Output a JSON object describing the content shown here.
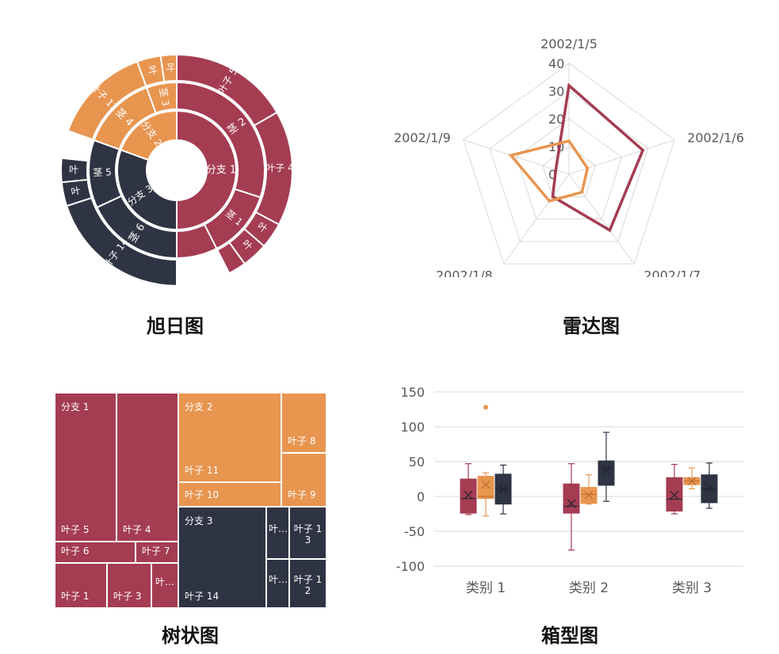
{
  "colors": {
    "red": "#A43C52",
    "orange": "#E89550",
    "navy": "#2F3444",
    "grid": "#D9D9D9",
    "axis_text": "#595959"
  },
  "captions": {
    "sunburst": "旭日图",
    "radar": "雷达图",
    "treemap": "树状图",
    "boxplot": "箱型图"
  },
  "chart_data": [
    {
      "type": "sunburst",
      "nodes": [
        {
          "name": "分支",
          "value": 1,
          "color": "red",
          "children": [
            {
              "name": "茎",
              "value": 2,
              "children": [
                {
                  "name": "叶子",
                  "value": 5
                },
                {
                  "name": "叶子",
                  "value": 4
                }
              ]
            },
            {
              "name": "茎",
              "value": 1,
              "children": [
                {
                  "name": "叶",
                  "value": 1
                },
                {
                  "name": "叶",
                  "value": 1
                }
              ]
            }
          ]
        },
        {
          "name": "分支",
          "value": 2,
          "color": "orange",
          "children": [
            {
              "name": "茎",
              "value": 4,
              "children": [
                {
                  "name": "叶子",
                  "value": 11
                }
              ]
            },
            {
              "name": "茎",
              "value": 3,
              "children": [
                {
                  "name": "叶",
                  "value": 1
                },
                {
                  "name": "叶",
                  "value": 1
                }
              ]
            }
          ]
        },
        {
          "name": "分支",
          "value": 3,
          "color": "navy",
          "children": [
            {
              "name": "茎",
              "value": 6,
              "children": [
                {
                  "name": "叶子",
                  "value": 14
                }
              ]
            },
            {
              "name": "茎",
              "value": 5,
              "children": [
                {
                  "name": "叶",
                  "value": 1
                },
                {
                  "name": "叶",
                  "value": 1
                },
                {
                  "name": "叶",
                  "value": 1
                }
              ]
            }
          ]
        }
      ]
    },
    {
      "type": "radar",
      "categories": [
        "2002/1/5",
        "2002/1/6",
        "2002/1/7",
        "2002/1/8",
        "2002/1/9"
      ],
      "rticks": [
        "0",
        "10",
        "20",
        "30",
        "40"
      ],
      "rlim": [
        0,
        40
      ],
      "series": [
        {
          "color": "red",
          "values": [
            32,
            28,
            25,
            10,
            5
          ]
        },
        {
          "color": "orange",
          "values": [
            12,
            7,
            8,
            12,
            22
          ]
        }
      ]
    },
    {
      "type": "treemap",
      "branch_labels": [
        "分支 1",
        "分支 2",
        "分支 3"
      ],
      "leaves": [
        {
          "label": "叶子 5",
          "color": "red"
        },
        {
          "label": "叶子 4",
          "color": "red"
        },
        {
          "label": "叶子 6",
          "color": "red"
        },
        {
          "label": "叶子 7",
          "color": "red"
        },
        {
          "label": "叶子 1",
          "color": "red"
        },
        {
          "label": "叶子 3",
          "color": "red"
        },
        {
          "label": "叶…",
          "color": "red"
        },
        {
          "label": "叶子 11",
          "color": "orange"
        },
        {
          "label": "叶子 8",
          "color": "orange"
        },
        {
          "label": "叶子 10",
          "color": "orange"
        },
        {
          "label": "叶子 9",
          "color": "orange"
        },
        {
          "label": "叶子 14",
          "color": "navy"
        },
        {
          "label": "叶…",
          "color": "navy"
        },
        {
          "label": "叶子 13",
          "color": "navy"
        },
        {
          "label": "叶…",
          "color": "navy"
        },
        {
          "label": "叶子 12",
          "color": "navy"
        }
      ]
    },
    {
      "type": "boxplot",
      "categories": [
        "类别 1",
        "类别 2",
        "类别 3"
      ],
      "yticks": [
        "150",
        "100",
        "50",
        "0",
        "-50",
        "-100"
      ],
      "ylim": [
        -100,
        150
      ],
      "boxes": [
        {
          "category": "类别 1",
          "color": "red",
          "min": -26,
          "q1": -24,
          "median": -3,
          "q3": 25,
          "max": 47,
          "mean": 2
        },
        {
          "category": "类别 1",
          "color": "orange",
          "min": -28,
          "q1": -3,
          "median": 0,
          "q3": 29,
          "max": 34,
          "mean": 17,
          "outliers": [
            128
          ]
        },
        {
          "category": "类别 1",
          "color": "navy",
          "min": -25,
          "q1": -11,
          "median": 10,
          "q3": 32,
          "max": 45,
          "mean": 10
        },
        {
          "category": "类别 2",
          "color": "red",
          "min": -77,
          "q1": -24,
          "median": -14,
          "q3": 18,
          "max": 47,
          "mean": -10
        },
        {
          "category": "类别 2",
          "color": "orange",
          "min": -11,
          "q1": -10,
          "median": 3,
          "q3": 13,
          "max": 31,
          "mean": 2
        },
        {
          "category": "类别 2",
          "color": "navy",
          "min": -7,
          "q1": 16,
          "median": 40,
          "q3": 51,
          "max": 92,
          "mean": 38
        },
        {
          "category": "类别 3",
          "color": "red",
          "min": -25,
          "q1": -21,
          "median": -4,
          "q3": 27,
          "max": 46,
          "mean": 2
        },
        {
          "category": "类别 3",
          "color": "orange",
          "min": 11,
          "q1": 17,
          "median": 22,
          "q3": 27,
          "max": 41,
          "mean": 22
        },
        {
          "category": "类别 3",
          "color": "navy",
          "min": -17,
          "q1": -9,
          "median": 11,
          "q3": 31,
          "max": 48,
          "mean": 12
        }
      ]
    }
  ]
}
